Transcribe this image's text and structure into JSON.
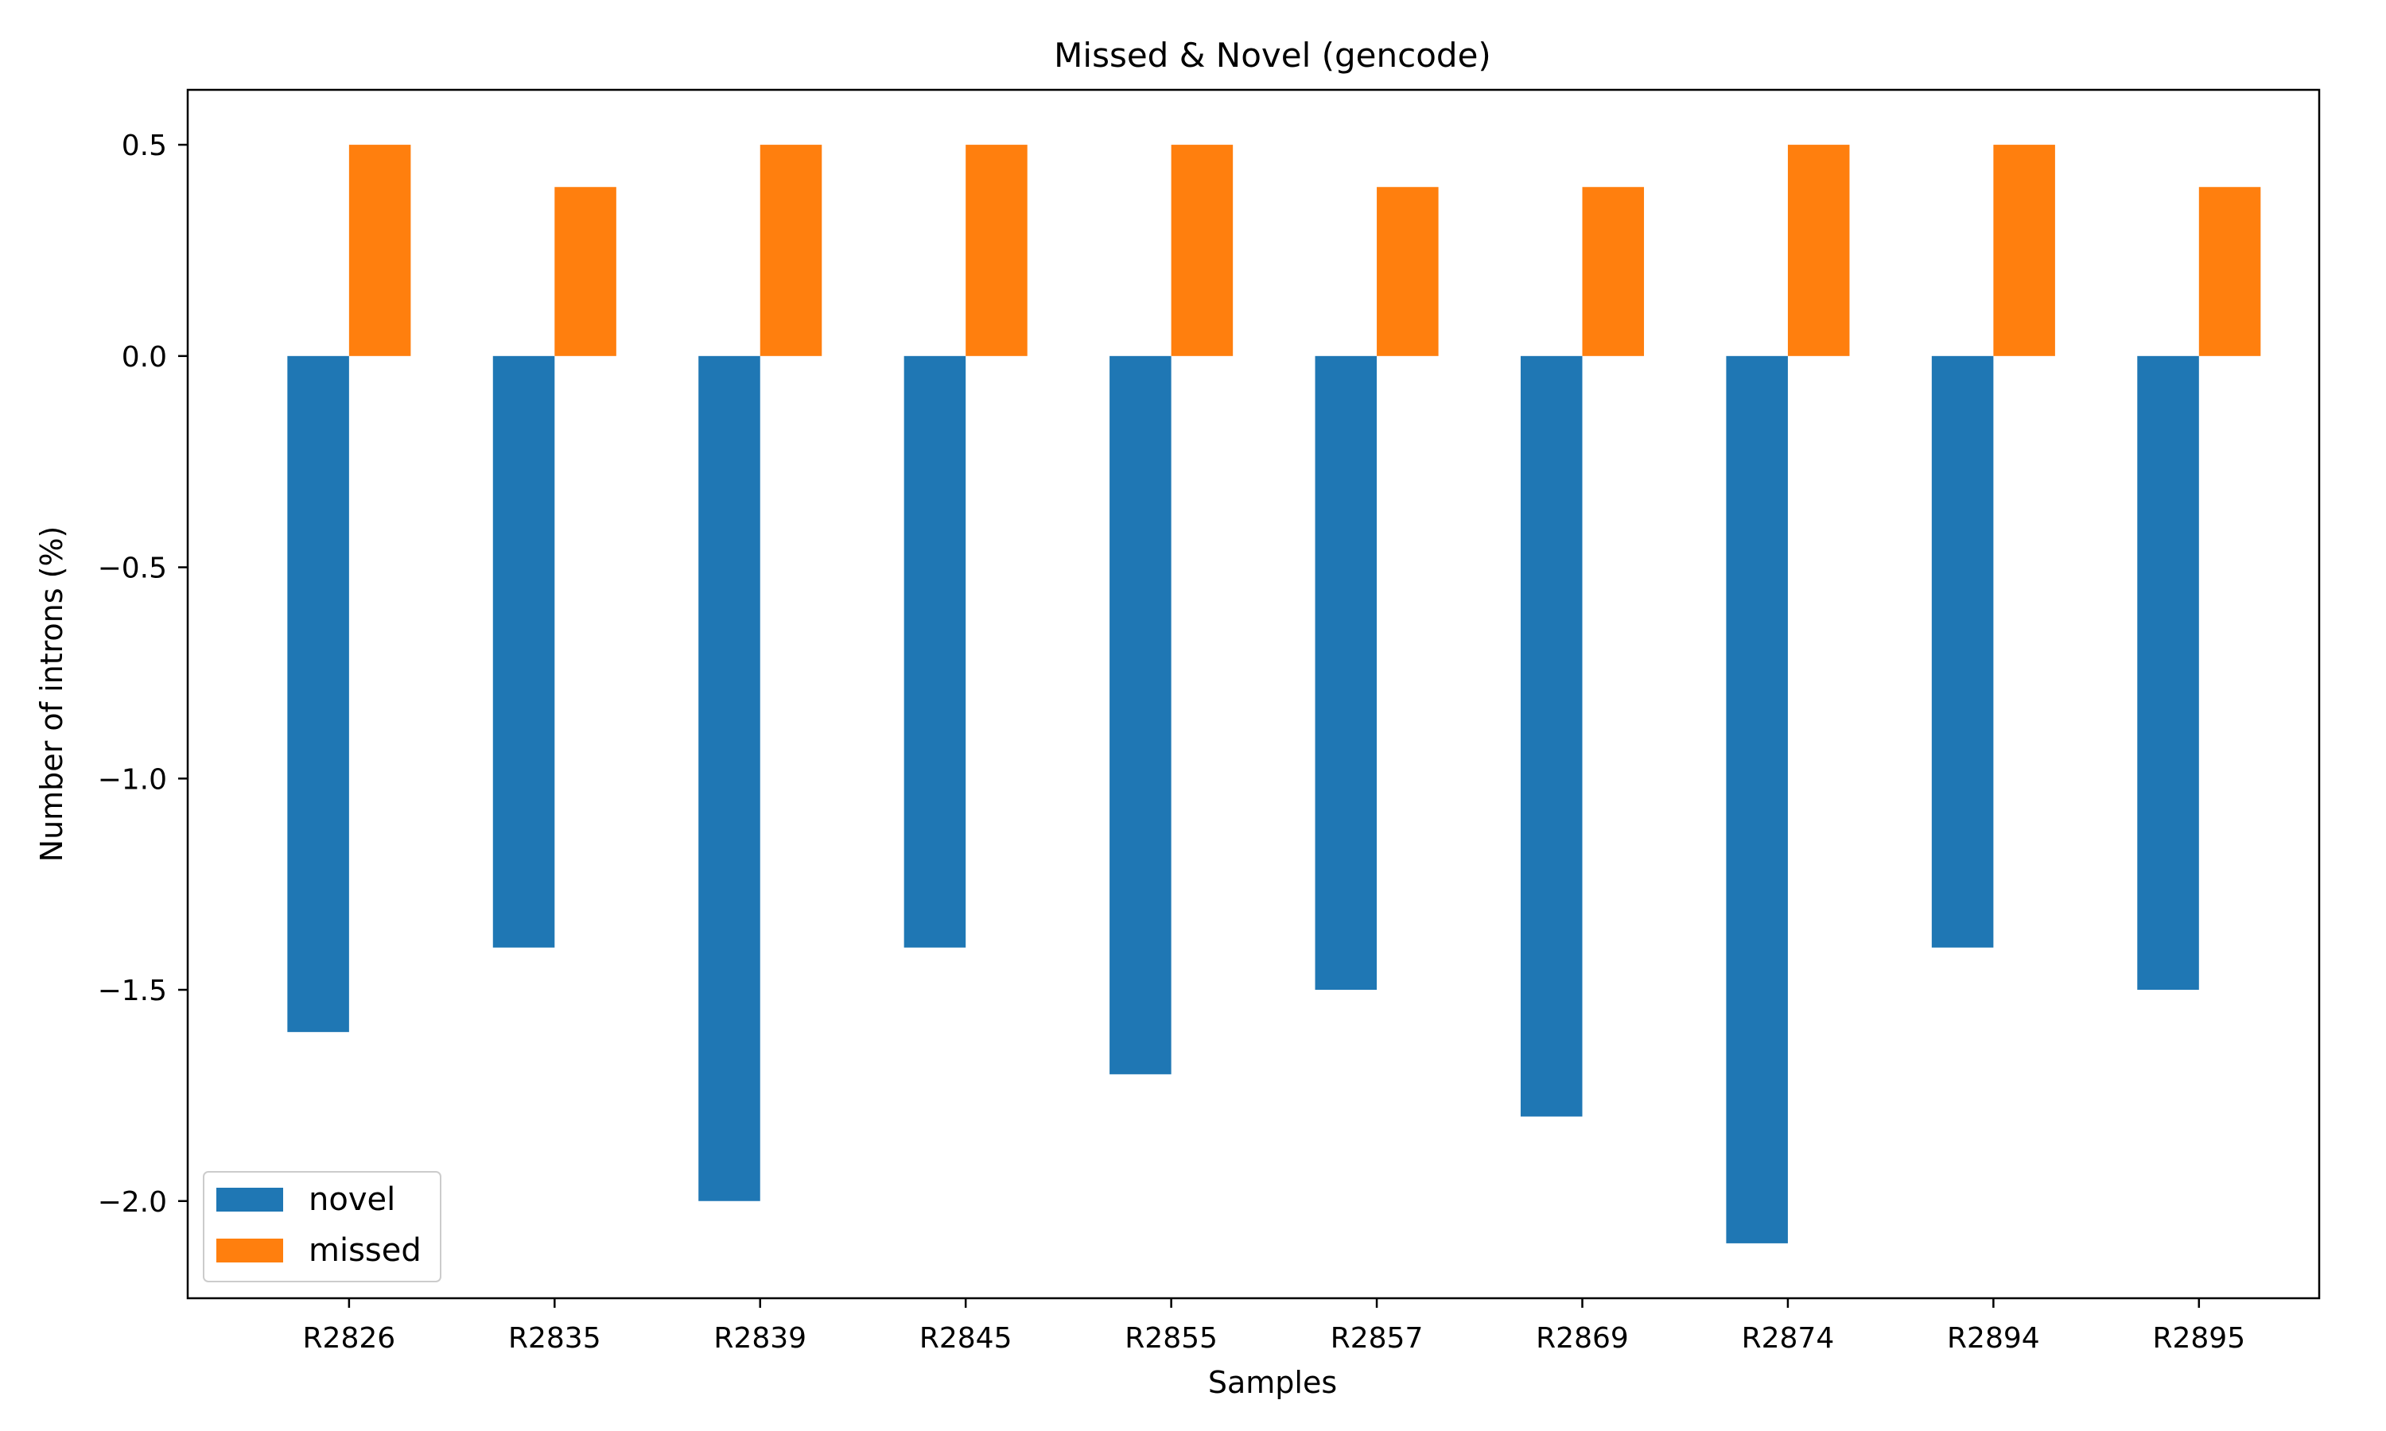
{
  "chart_data": {
    "type": "bar",
    "title": "Missed & Novel (gencode)",
    "xlabel": "Samples",
    "ylabel": "Number of introns (%)",
    "categories": [
      "R2826",
      "R2835",
      "R2839",
      "R2845",
      "R2855",
      "R2857",
      "R2869",
      "R2874",
      "R2894",
      "R2895"
    ],
    "series": [
      {
        "name": "novel",
        "color": "#1f77b4",
        "values": [
          -1.6,
          -1.4,
          -2.0,
          -1.4,
          -1.7,
          -1.5,
          -1.8,
          -2.1,
          -1.4,
          -1.5
        ]
      },
      {
        "name": "missed",
        "color": "#ff7f0e",
        "values": [
          0.5,
          0.4,
          0.5,
          0.5,
          0.5,
          0.4,
          0.4,
          0.5,
          0.5,
          0.4
        ]
      }
    ],
    "yticks": [
      0.5,
      0.0,
      -0.5,
      -1.0,
      -1.5,
      -2.0
    ],
    "ytick_labels": [
      "0.5",
      "0.0",
      "−0.5",
      "−1.0",
      "−1.5",
      "−2.0"
    ],
    "ylim": [
      -2.23,
      0.63
    ],
    "grid": false,
    "legend_position": "lower-left"
  }
}
